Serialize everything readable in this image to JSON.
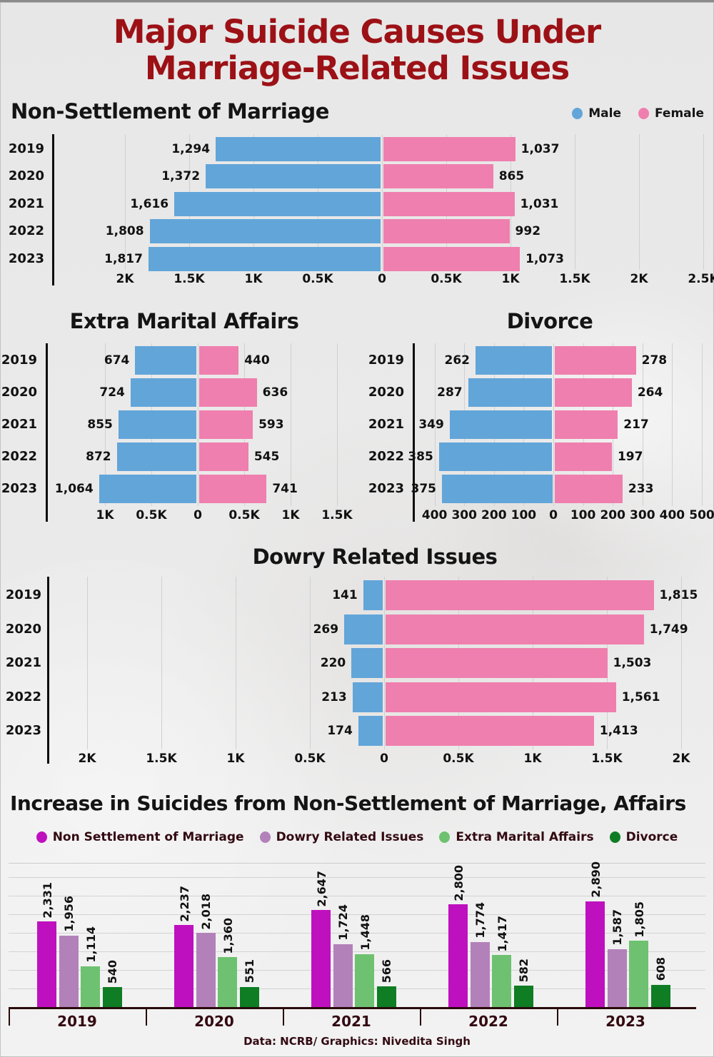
{
  "page_title": {
    "line1": "Major Suicide Causes Under",
    "line2": "Marriage-Related Issues"
  },
  "gender_legend": {
    "male": "Male",
    "female": "Female"
  },
  "footer": "Data: NCRB/ Graphics: Nivedita Singh",
  "colors": {
    "title_red": "#9c1116",
    "male_blue": "#62a5d9",
    "female_pink": "#ef7fae",
    "non_settlement_magenta": "#bf10bf",
    "dowry_purple": "#b381ba",
    "affairs_green": "#6ec170",
    "divorce_green": "#0e7d24",
    "maroon_text": "#330a12"
  },
  "chart_data": [
    {
      "type": "bar",
      "variant": "population-pyramid",
      "title": "Non-Settlement of Marriage",
      "categories": [
        "2019",
        "2020",
        "2021",
        "2022",
        "2023"
      ],
      "series": [
        {
          "name": "Male",
          "color": "#62a5d9",
          "values": [
            1294,
            1372,
            1616,
            1808,
            1817
          ]
        },
        {
          "name": "Female",
          "color": "#ef7fae",
          "values": [
            1037,
            865,
            1031,
            992,
            1073
          ]
        }
      ],
      "ticks": [
        {
          "label": "2K",
          "value": -2000
        },
        {
          "label": "1.5K",
          "value": -1500
        },
        {
          "label": "1K",
          "value": -1000
        },
        {
          "label": "0.5K",
          "value": -500
        },
        {
          "label": "0",
          "value": 0
        },
        {
          "label": "0.5K",
          "value": 500
        },
        {
          "label": "1K",
          "value": 1000
        },
        {
          "label": "1.5K",
          "value": 1500
        },
        {
          "label": "2K",
          "value": 2000
        },
        {
          "label": "2.5K",
          "value": 2500
        }
      ]
    },
    {
      "type": "bar",
      "variant": "population-pyramid",
      "title": "Extra Marital Affairs",
      "categories": [
        "2019",
        "2020",
        "2021",
        "2022",
        "2023"
      ],
      "series": [
        {
          "name": "Male",
          "color": "#62a5d9",
          "values": [
            674,
            724,
            855,
            872,
            1064
          ]
        },
        {
          "name": "Female",
          "color": "#ef7fae",
          "values": [
            440,
            636,
            593,
            545,
            741
          ]
        }
      ],
      "ticks": [
        {
          "label": "1K",
          "value": -1000
        },
        {
          "label": "0.5K",
          "value": -500
        },
        {
          "label": "0",
          "value": 0
        },
        {
          "label": "0.5K",
          "value": 500
        },
        {
          "label": "1K",
          "value": 1000
        },
        {
          "label": "1.5K",
          "value": 1500
        }
      ]
    },
    {
      "type": "bar",
      "variant": "population-pyramid",
      "title": "Divorce",
      "categories": [
        "2019",
        "2020",
        "2021",
        "2022",
        "2023"
      ],
      "series": [
        {
          "name": "Male",
          "color": "#62a5d9",
          "values": [
            262,
            287,
            349,
            385,
            375
          ]
        },
        {
          "name": "Female",
          "color": "#ef7fae",
          "values": [
            278,
            264,
            217,
            197,
            233
          ]
        }
      ],
      "ticks": [
        {
          "label": "400",
          "value": -400
        },
        {
          "label": "300",
          "value": -300
        },
        {
          "label": "200",
          "value": -200
        },
        {
          "label": "100",
          "value": -100
        },
        {
          "label": "0",
          "value": 0
        },
        {
          "label": "100",
          "value": 100
        },
        {
          "label": "200",
          "value": 200
        },
        {
          "label": "300",
          "value": 300
        },
        {
          "label": "400",
          "value": 400
        },
        {
          "label": "500",
          "value": 500
        }
      ]
    },
    {
      "type": "bar",
      "variant": "population-pyramid",
      "title": "Dowry Related Issues",
      "categories": [
        "2019",
        "2020",
        "2021",
        "2022",
        "2023"
      ],
      "series": [
        {
          "name": "Male",
          "color": "#62a5d9",
          "values": [
            141,
            269,
            220,
            213,
            174
          ]
        },
        {
          "name": "Female",
          "color": "#ef7fae",
          "values": [
            1815,
            1749,
            1503,
            1561,
            1413
          ]
        }
      ],
      "ticks": [
        {
          "label": "2K",
          "value": -2000
        },
        {
          "label": "1.5K",
          "value": -1500
        },
        {
          "label": "1K",
          "value": -1000
        },
        {
          "label": "0.5K",
          "value": -500
        },
        {
          "label": "0",
          "value": 0
        },
        {
          "label": "0.5K",
          "value": 500
        },
        {
          "label": "1K",
          "value": 1000
        },
        {
          "label": "1.5K",
          "value": 1500
        },
        {
          "label": "2K",
          "value": 2000
        }
      ]
    },
    {
      "type": "bar",
      "variant": "grouped",
      "title": "Increase in Suicides from Non-Settlement of Marriage, Affairs",
      "categories": [
        "2019",
        "2020",
        "2021",
        "2022",
        "2023"
      ],
      "series": [
        {
          "name": "Non Settlement of Marriage",
          "color": "#bf10bf",
          "values": [
            2331,
            2237,
            2647,
            2800,
            2890
          ]
        },
        {
          "name": "Dowry Related Issues",
          "color": "#b381ba",
          "values": [
            1956,
            2018,
            1724,
            1774,
            1587
          ]
        },
        {
          "name": "Extra Marital Affairs",
          "color": "#6ec170",
          "values": [
            1114,
            1360,
            1448,
            1417,
            1805
          ]
        },
        {
          "name": "Divorce",
          "color": "#0e7d24",
          "values": [
            540,
            551,
            566,
            582,
            608
          ]
        }
      ]
    }
  ]
}
